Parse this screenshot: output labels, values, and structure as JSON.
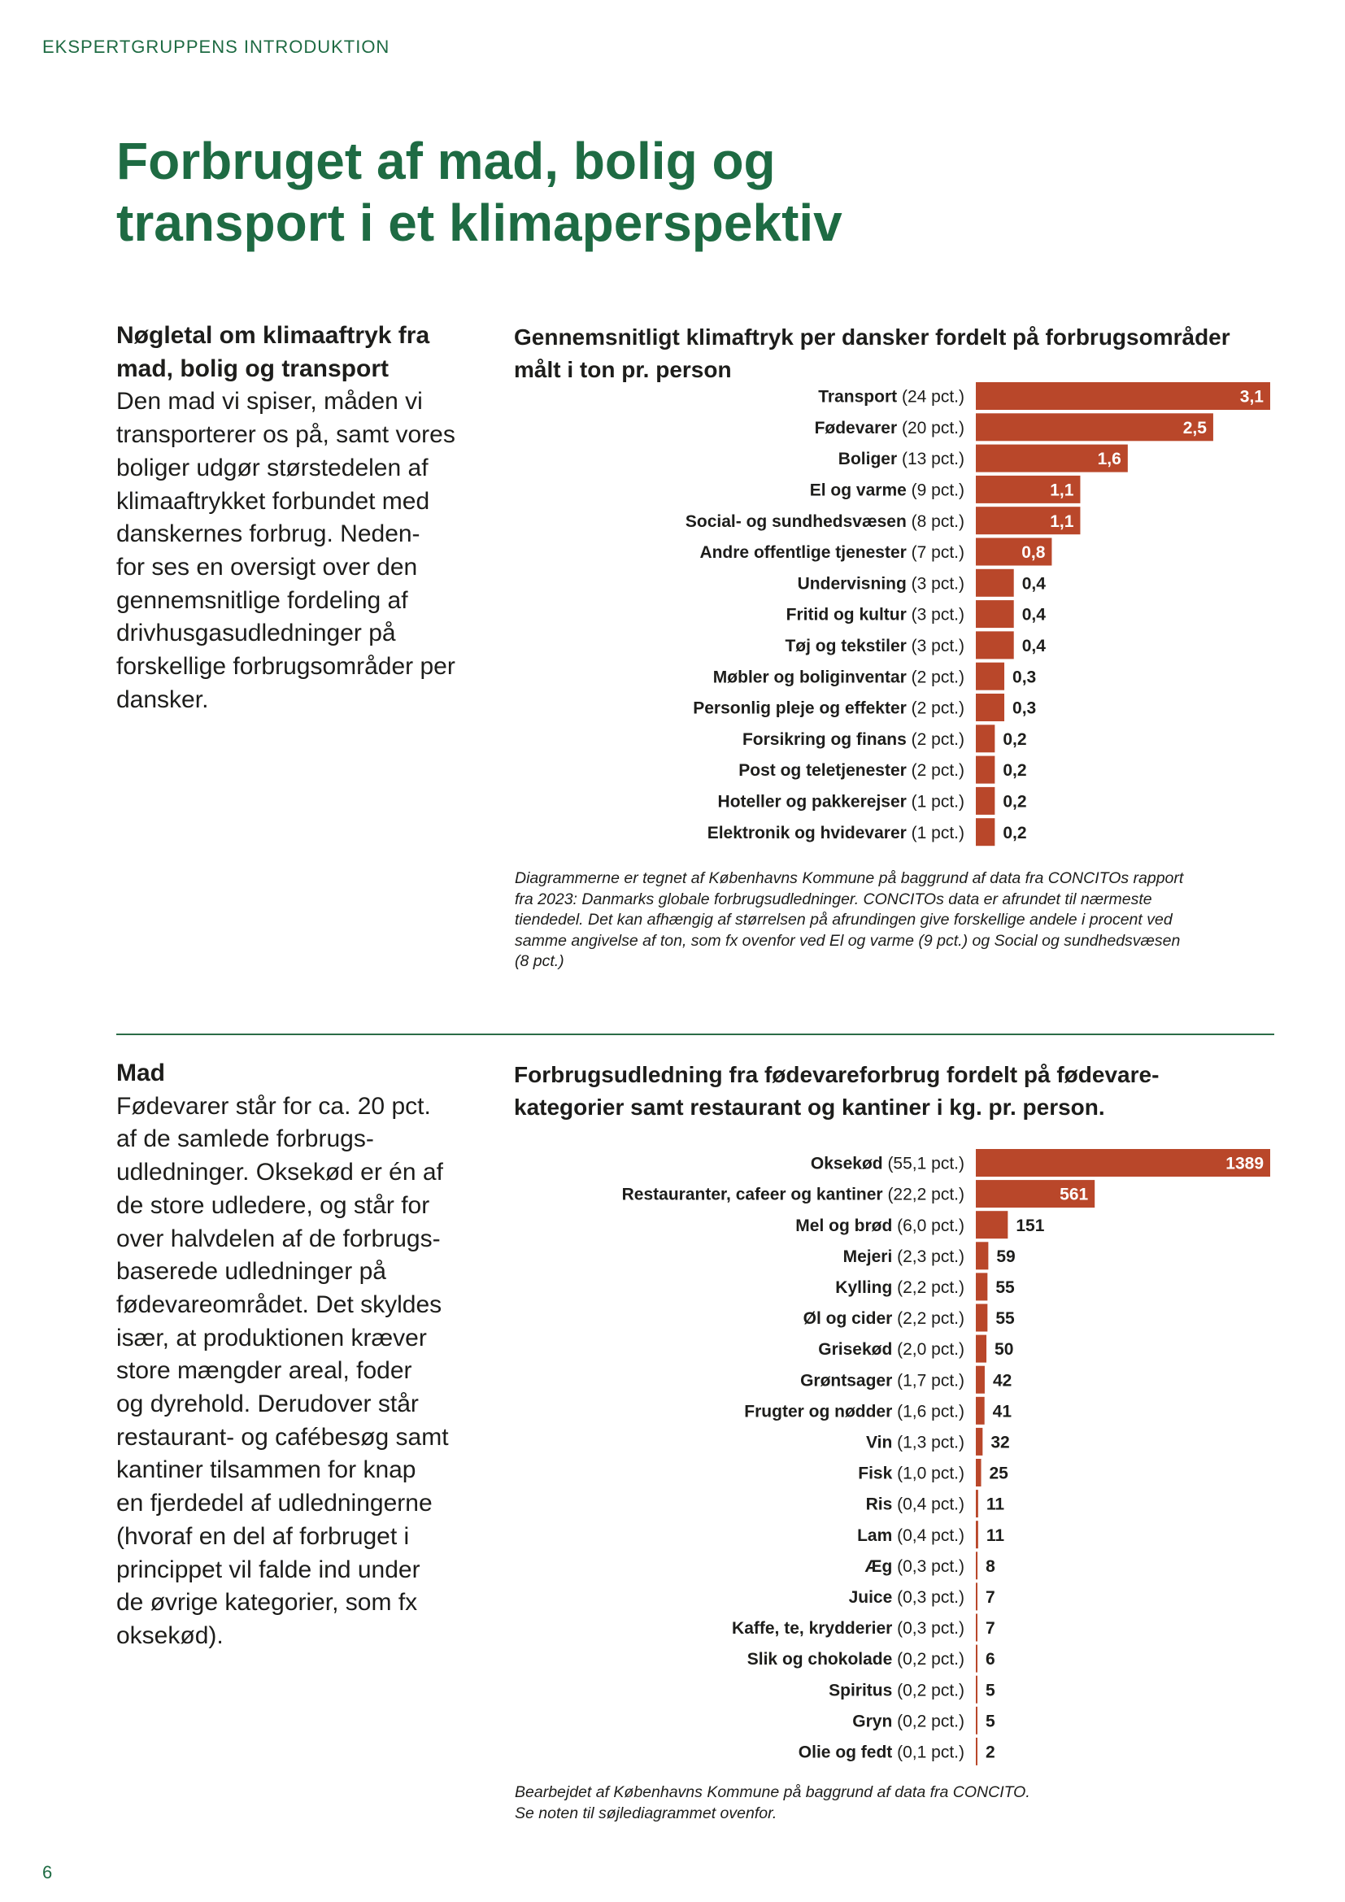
{
  "header": {
    "section_tag": "EKSPERTGRUPPENS INTRODUKTION"
  },
  "title": {
    "line1": "Forbruget af mad, bolig og",
    "line2": "transport i et klimaperspektiv"
  },
  "intro": {
    "heading": [
      "Nøgletal om klimaaftryk fra",
      "mad, bolig og transport"
    ],
    "lines": [
      "Den mad vi spiser, måden vi",
      "transporterer os på, samt vores",
      "boliger udgør størstedelen af",
      "klimaaftrykket forbundet med",
      "danskernes forbrug. Neden-",
      "for ses en oversigt over den",
      "gennemsnitlige fordeling af",
      "drivhusgasudledninger på",
      "forskellige forbrugsområder per",
      "dansker."
    ]
  },
  "mad": {
    "heading": "Mad",
    "lines": [
      "Fødevarer står for ca. 20 pct.",
      "af de samlede forbrugs-",
      "udledninger. Oksekød er én af",
      "de store udledere, og står for",
      "over halvdelen af de forbrugs-",
      "baserede udledninger på",
      "fødevareområdet. Det skyldes",
      "især, at produktionen kræver",
      "store mængder areal, foder",
      "og dyrehold. Derudover står",
      "restaurant- og cafébesøg samt",
      "kantiner tilsammen for knap",
      "en fjerdedel af udledningerne",
      "(hvoraf en del af forbruget i",
      "princippet vil falde ind under",
      "de øvrige kategorier, som fx",
      "oksekød)."
    ]
  },
  "chart_data": [
    {
      "type": "bar",
      "orientation": "horizontal",
      "title": "Gennemsnitligt klimaftryk per dansker fordelt på forbrugsområder målt i ton pr. person",
      "title_lines": [
        "Gennemsnitligt klimaftryk per dansker fordelt på forbrugsområder",
        "målt i ton pr. person"
      ],
      "categories": [
        "Transport",
        "Fødevarer",
        "Boliger",
        "El og varme",
        "Social- og sundhedsvæsen",
        "Andre offentlige tjenester",
        "Undervisning",
        "Fritid og kultur",
        "Tøj og tekstiler",
        "Møbler og boliginventar",
        "Personlig pleje og effekter",
        "Forsikring og finans",
        "Post og teletjenester",
        "Hoteller og pakkerejser",
        "Elektronik og hvidevarer"
      ],
      "shares": [
        "(24 pct.)",
        "(20 pct.)",
        "(13 pct.)",
        "(9 pct.)",
        "(8 pct.)",
        "(7 pct.)",
        "(3 pct.)",
        "(3 pct.)",
        "(3 pct.)",
        "(2 pct.)",
        "(2 pct.)",
        "(2 pct.)",
        "(2 pct.)",
        "(1 pct.)",
        "(1 pct.)"
      ],
      "values": [
        3.1,
        2.5,
        1.6,
        1.1,
        1.1,
        0.8,
        0.4,
        0.4,
        0.4,
        0.3,
        0.3,
        0.2,
        0.2,
        0.2,
        0.2
      ],
      "value_labels": [
        "3,1",
        "2,5",
        "1,6",
        "1,1",
        "1,1",
        "0,8",
        "0,4",
        "0,4",
        "0,4",
        "0,3",
        "0,3",
        "0,2",
        "0,2",
        "0,2",
        "0,2"
      ],
      "xlim": [
        0,
        3.1
      ],
      "bar_color": "#b9472a",
      "label_color_inside": "#ffffff",
      "label_color_outside": "#1d1d1b",
      "grid": false,
      "note_lines": [
        "Diagrammerne er tegnet af Københavns Kommune på baggrund af data fra CONCITOs rapport",
        "fra 2023: Danmarks globale forbrugsudledninger. CONCITOs data er afrundet til nærmeste",
        "tiendedel. Det kan afhængig af størrelsen på afrundingen give forskellige andele i procent ved",
        "samme angivelse af ton, som fx ovenfor ved El og varme (9 pct.) og Social og sundhedsvæsen",
        "(8 pct.)"
      ]
    },
    {
      "type": "bar",
      "orientation": "horizontal",
      "title": "Forbrugsudledning fra fødevareforbrug fordelt på fødevare-kategorier samt restaurant og kantiner i kg. pr. person.",
      "title_lines": [
        "Forbrugsudledning fra fødevareforbrug fordelt på fødevare-",
        "kategorier samt restaurant og kantiner i kg. pr. person."
      ],
      "categories": [
        "Oksekød",
        "Restauranter, cafeer og kantiner",
        "Mel og brød",
        "Mejeri",
        "Kylling",
        "Øl og cider",
        "Grisekød",
        "Grøntsager",
        "Frugter og nødder",
        "Vin",
        "Fisk",
        "Ris",
        "Lam",
        "Æg",
        "Juice",
        "Kaffe, te, krydderier",
        "Slik og chokolade",
        "Spiritus",
        "Gryn",
        "Olie og fedt"
      ],
      "shares": [
        "(55,1 pct.)",
        "(22,2 pct.)",
        "(6,0 pct.)",
        "(2,3 pct.)",
        "(2,2 pct.)",
        "(2,2 pct.)",
        "(2,0 pct.)",
        "(1,7 pct.)",
        "(1,6 pct.)",
        "(1,3 pct.)",
        "(1,0 pct.)",
        "(0,4 pct.)",
        "(0,4 pct.)",
        "(0,3 pct.)",
        "(0,3 pct.)",
        "(0,3 pct.)",
        "(0,2 pct.)",
        "(0,2 pct.)",
        "(0,2 pct.)",
        "(0,1 pct.)"
      ],
      "values": [
        1389,
        561,
        151,
        59,
        55,
        55,
        50,
        42,
        41,
        32,
        25,
        11,
        11,
        8,
        7,
        7,
        6,
        5,
        5,
        2
      ],
      "value_labels": [
        "1389",
        "561",
        "151",
        "59",
        "55",
        "55",
        "50",
        "42",
        "41",
        "32",
        "25",
        "11",
        "11",
        "8",
        "7",
        "7",
        "6",
        "5",
        "5",
        "2"
      ],
      "xlim": [
        0,
        1389
      ],
      "bar_color": "#b9472a",
      "label_color_inside": "#ffffff",
      "label_color_outside": "#1d1d1b",
      "grid": false,
      "note_lines": [
        "Bearbejdet af Københavns Kommune på baggrund af data fra CONCITO.",
        "Se noten til søjlediagrammet ovenfor."
      ]
    }
  ],
  "footer": {
    "page_number": "6"
  },
  "colors": {
    "accent_green": "#1e6b43",
    "bar_red": "#b9472a",
    "text": "#1d1d1b"
  }
}
